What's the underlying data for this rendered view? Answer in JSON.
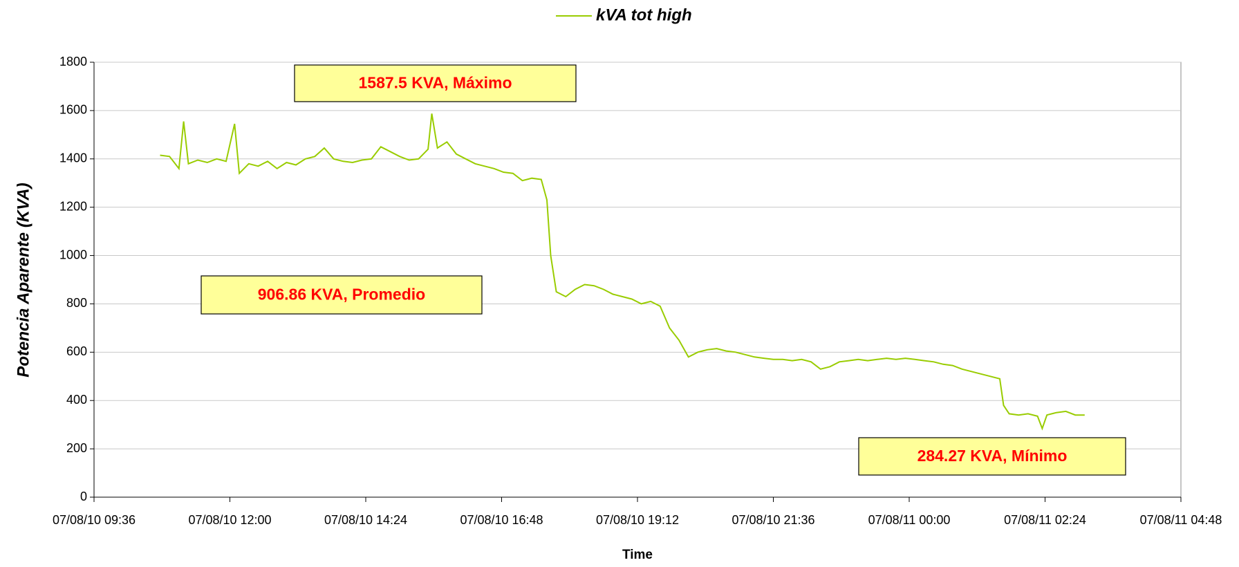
{
  "chart_data": {
    "type": "line",
    "y_label": "Potencia Aparente (KVA)",
    "x_label": "Time",
    "annotations": [
      "1587.5 KVA, Máximo",
      "906.86 KVA, Promedio",
      "284.27 KVA, Mínimo"
    ],
    "legend": "top",
    "grid": true,
    "ylim": [
      0,
      1800
    ],
    "yticks": [
      0,
      200,
      400,
      600,
      800,
      1000,
      1200,
      1400,
      1600,
      1800
    ],
    "xlim": [
      "07/08/10 09:36",
      "07/08/11 04:48"
    ],
    "xticks": [
      "07/08/10 09:36",
      "07/08/10 12:00",
      "07/08/10 14:24",
      "07/08/10 16:48",
      "07/08/10 19:12",
      "07/08/10 21:36",
      "07/08/11 00:00",
      "07/08/11 02:24",
      "07/08/11 04:48"
    ],
    "x": [
      "07/08/10 10:46",
      "07/08/10 10:56",
      "07/08/10 11:06",
      "07/08/10 11:11",
      "07/08/10 11:16",
      "07/08/10 11:26",
      "07/08/10 11:36",
      "07/08/10 11:46",
      "07/08/10 11:56",
      "07/08/10 12:05",
      "07/08/10 12:10",
      "07/08/10 12:20",
      "07/08/10 12:30",
      "07/08/10 12:40",
      "07/08/10 12:50",
      "07/08/10 13:00",
      "07/08/10 13:10",
      "07/08/10 13:20",
      "07/08/10 13:30",
      "07/08/10 13:40",
      "07/08/10 13:50",
      "07/08/10 14:00",
      "07/08/10 14:10",
      "07/08/10 14:20",
      "07/08/10 14:30",
      "07/08/10 14:40",
      "07/08/10 14:50",
      "07/08/10 15:00",
      "07/08/10 15:10",
      "07/08/10 15:20",
      "07/08/10 15:30",
      "07/08/10 15:34",
      "07/08/10 15:40",
      "07/08/10 15:50",
      "07/08/10 16:00",
      "07/08/10 16:10",
      "07/08/10 16:20",
      "07/08/10 16:30",
      "07/08/10 16:40",
      "07/08/10 16:50",
      "07/08/10 17:00",
      "07/08/10 17:10",
      "07/08/10 17:20",
      "07/08/10 17:30",
      "07/08/10 17:36",
      "07/08/10 17:40",
      "07/08/10 17:46",
      "07/08/10 17:56",
      "07/08/10 18:06",
      "07/08/10 18:16",
      "07/08/10 18:26",
      "07/08/10 18:36",
      "07/08/10 18:46",
      "07/08/10 18:56",
      "07/08/10 19:06",
      "07/08/10 19:16",
      "07/08/10 19:26",
      "07/08/10 19:36",
      "07/08/10 19:46",
      "07/08/10 19:56",
      "07/08/10 20:06",
      "07/08/10 20:16",
      "07/08/10 20:26",
      "07/08/10 20:36",
      "07/08/10 20:46",
      "07/08/10 20:56",
      "07/08/10 21:06",
      "07/08/10 21:16",
      "07/08/10 21:26",
      "07/08/10 21:36",
      "07/08/10 21:46",
      "07/08/10 21:56",
      "07/08/10 22:06",
      "07/08/10 22:16",
      "07/08/10 22:26",
      "07/08/10 22:36",
      "07/08/10 22:46",
      "07/08/10 22:56",
      "07/08/10 23:06",
      "07/08/10 23:16",
      "07/08/10 23:26",
      "07/08/10 23:36",
      "07/08/10 23:46",
      "07/08/10 23:56",
      "07/08/11 00:06",
      "07/08/11 00:16",
      "07/08/11 00:26",
      "07/08/11 00:36",
      "07/08/11 00:46",
      "07/08/11 00:56",
      "07/08/11 01:06",
      "07/08/11 01:16",
      "07/08/11 01:26",
      "07/08/11 01:36",
      "07/08/11 01:40",
      "07/08/11 01:46",
      "07/08/11 01:56",
      "07/08/11 02:06",
      "07/08/11 02:16",
      "07/08/11 02:21",
      "07/08/11 02:26",
      "07/08/11 02:36",
      "07/08/11 02:46",
      "07/08/11 02:56",
      "07/08/11 03:06"
    ],
    "series": [
      {
        "name": "kVA tot high",
        "color": "#99cc00",
        "values": [
          1415,
          1410,
          1360,
          1555,
          1380,
          1395,
          1385,
          1400,
          1390,
          1545,
          1340,
          1380,
          1370,
          1390,
          1360,
          1385,
          1375,
          1400,
          1410,
          1445,
          1400,
          1390,
          1385,
          1395,
          1400,
          1450,
          1430,
          1410,
          1395,
          1400,
          1440,
          1587.5,
          1445,
          1470,
          1420,
          1400,
          1380,
          1370,
          1360,
          1345,
          1340,
          1310,
          1320,
          1315,
          1230,
          1000,
          850,
          830,
          860,
          880,
          875,
          860,
          840,
          830,
          820,
          800,
          810,
          790,
          700,
          650,
          580,
          600,
          610,
          615,
          605,
          600,
          590,
          580,
          575,
          570,
          570,
          565,
          570,
          560,
          530,
          540,
          560,
          565,
          570,
          565,
          570,
          575,
          570,
          575,
          570,
          565,
          560,
          550,
          545,
          530,
          520,
          510,
          500,
          490,
          380,
          345,
          340,
          345,
          335,
          284.27,
          340,
          350,
          355,
          340,
          340
        ]
      }
    ]
  }
}
